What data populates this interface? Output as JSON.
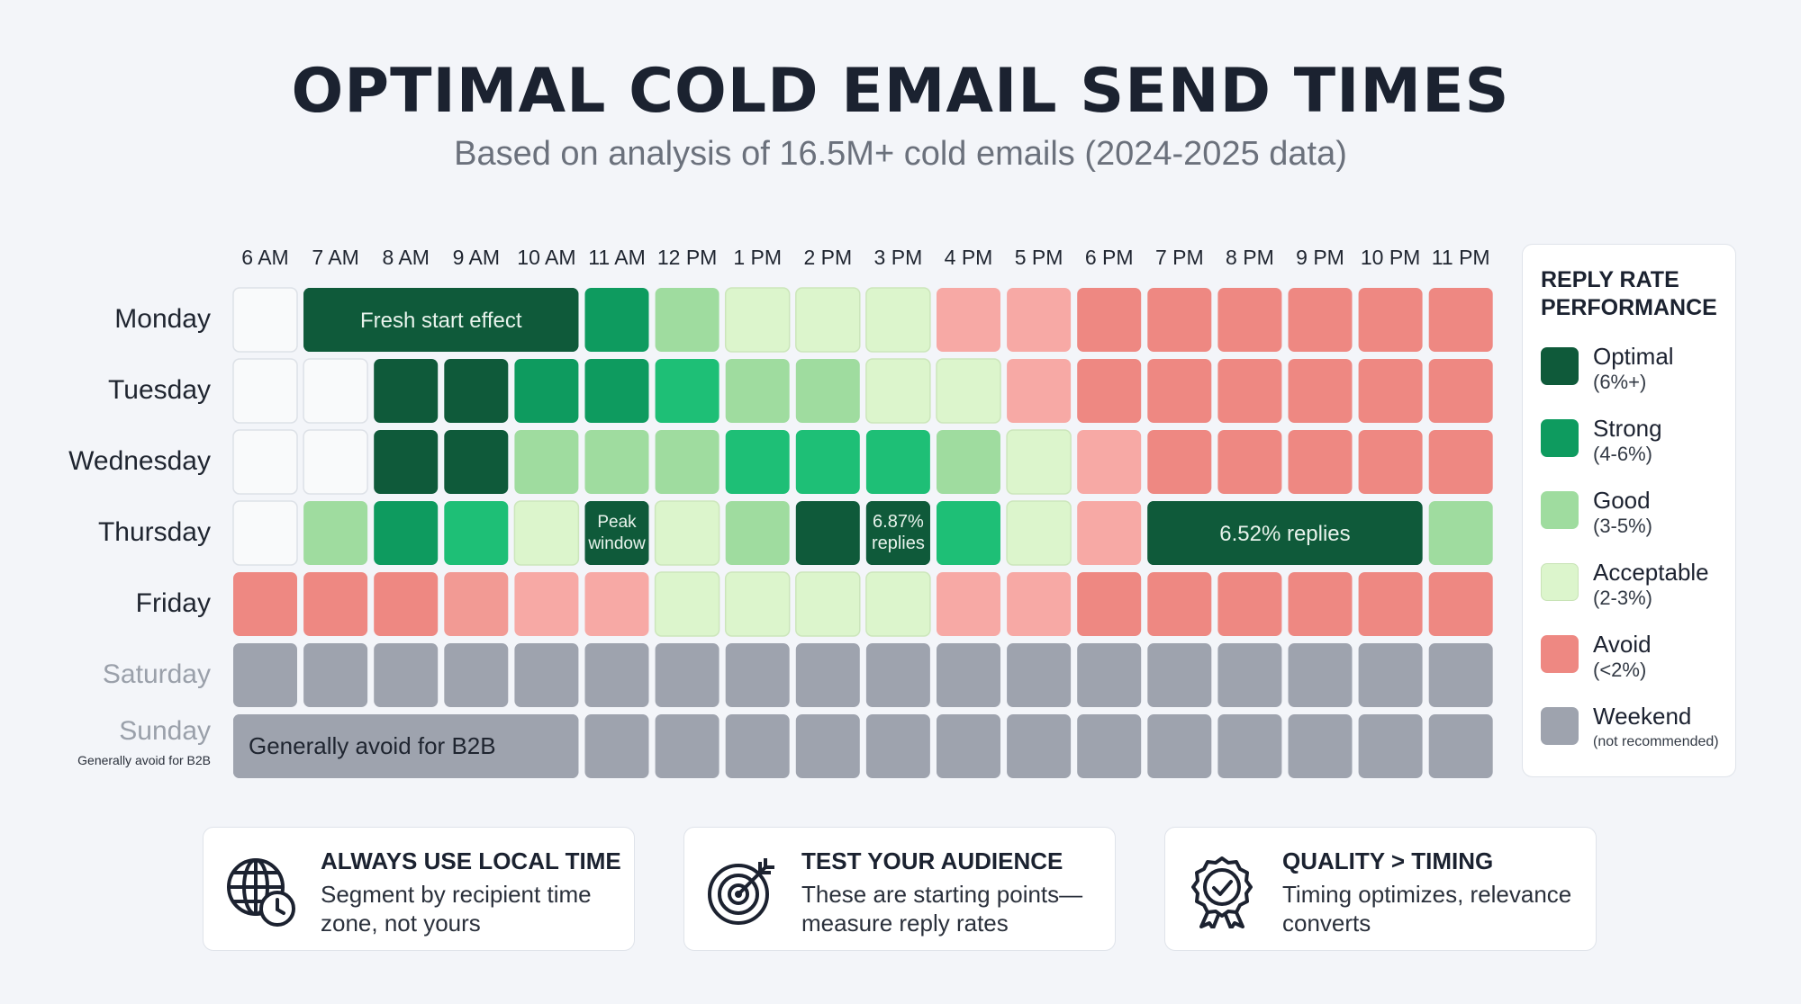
{
  "header": {
    "title": "OPTIMAL COLD EMAIL SEND TIMES",
    "subtitle": "Based on analysis of 16.5M+ cold emails (2024-2025 data)"
  },
  "chart_data": {
    "type": "heatmap",
    "x": [
      "6 AM",
      "7 AM",
      "8 AM",
      "9 AM",
      "10 AM",
      "11 AM",
      "12 PM",
      "1 PM",
      "2 PM",
      "3 PM",
      "4 PM",
      "5 PM",
      "6 PM",
      "7 PM",
      "8 PM",
      "9 PM",
      "10 PM",
      "11 PM"
    ],
    "y": [
      "Monday",
      "Tuesday",
      "Wednesday",
      "Thursday",
      "Friday",
      "Saturday",
      "Sunday"
    ],
    "row_notes": {
      "Sunday": "Generally avoid for B2B"
    },
    "categories": [
      "none",
      "optimal",
      "strong",
      "good",
      "acceptable",
      "avoid",
      "avoid-light",
      "avoid-mid",
      "weekend"
    ],
    "colors": {
      "none": "#f9fafb",
      "optimal": "#0f5a3a",
      "strong": "#0e9b5f",
      "strong-bright": "#1ebf76",
      "good": "#9fdc9f",
      "acceptable": "#dcf5cc",
      "avoid-light": "#f7a9a5",
      "avoid-mid": "#f29a94",
      "avoid": "#ee8882",
      "weekend": "#9ea3ae"
    },
    "cells": [
      [
        "none",
        "optimal",
        "optimal",
        "optimal",
        "optimal",
        "strong",
        "good",
        "acceptable",
        "acceptable",
        "acceptable",
        "avoid-light",
        "avoid-light",
        "avoid",
        "avoid",
        "avoid",
        "avoid",
        "avoid",
        "avoid"
      ],
      [
        "none",
        "none",
        "optimal",
        "optimal",
        "strong",
        "strong",
        "strong-bright",
        "good",
        "good",
        "acceptable",
        "acceptable",
        "avoid-light",
        "avoid",
        "avoid",
        "avoid",
        "avoid",
        "avoid",
        "avoid"
      ],
      [
        "none",
        "none",
        "optimal",
        "optimal",
        "good",
        "good",
        "good",
        "strong-bright",
        "strong-bright",
        "strong-bright",
        "good",
        "acceptable",
        "avoid-light",
        "avoid",
        "avoid",
        "avoid",
        "avoid",
        "avoid"
      ],
      [
        "none",
        "good",
        "strong",
        "strong-bright",
        "acceptable",
        "optimal",
        "acceptable",
        "good",
        "optimal",
        "optimal",
        "strong-bright",
        "acceptable",
        "avoid-light",
        "optimal",
        "optimal",
        "optimal",
        "optimal",
        "good"
      ],
      [
        "avoid",
        "avoid",
        "avoid",
        "avoid-mid",
        "avoid-light",
        "avoid-light",
        "acceptable",
        "acceptable",
        "acceptable",
        "acceptable",
        "avoid-light",
        "avoid-light",
        "avoid",
        "avoid",
        "avoid",
        "avoid",
        "avoid",
        "avoid"
      ],
      [
        "weekend",
        "weekend",
        "weekend",
        "weekend",
        "weekend",
        "weekend",
        "weekend",
        "weekend",
        "weekend",
        "weekend",
        "weekend",
        "weekend",
        "weekend",
        "weekend",
        "weekend",
        "weekend",
        "weekend",
        "weekend"
      ],
      [
        "weekend",
        "weekend",
        "weekend",
        "weekend",
        "weekend",
        "weekend",
        "weekend",
        "weekend",
        "weekend",
        "weekend",
        "weekend",
        "weekend",
        "weekend",
        "weekend",
        "weekend",
        "weekend",
        "weekend",
        "weekend"
      ]
    ],
    "annotations": [
      {
        "row": 0,
        "col_start": 1,
        "col_end": 4,
        "text": "Fresh start effect",
        "color": "optimal"
      },
      {
        "row": 3,
        "col_start": 5,
        "col_end": 5,
        "text": "Peak window",
        "color": "optimal"
      },
      {
        "row": 3,
        "col_start": 9,
        "col_end": 9,
        "text": "6.87% replies",
        "color": "optimal"
      },
      {
        "row": 3,
        "col_start": 13,
        "col_end": 16,
        "text": "6.52% replies",
        "color": "optimal"
      },
      {
        "row": 6,
        "col_start": 0,
        "col_end": 4,
        "text": "Generally avoid for B2B",
        "color": "weekend"
      }
    ]
  },
  "legend": {
    "title": "REPLY RATE PERFORMANCE",
    "items": [
      {
        "label": "Optimal",
        "sub": "(6%+)",
        "color": "#0f5a3a"
      },
      {
        "label": "Strong",
        "sub": "(4-6%)",
        "color": "#0e9b5f"
      },
      {
        "label": "Good",
        "sub": "(3-5%)",
        "color": "#9fdc9f"
      },
      {
        "label": "Acceptable",
        "sub": "(2-3%)",
        "color": "#dcf5cc"
      },
      {
        "label": "Avoid",
        "sub": "(<2%)",
        "color": "#ee8882"
      },
      {
        "label": "Weekend",
        "sub": "(not recommended)",
        "color": "#9ea3ae"
      }
    ]
  },
  "cards": [
    {
      "title": "ALWAYS USE LOCAL TIME",
      "text": "Segment by recipient time zone, not yours",
      "icon": "globe-clock-icon"
    },
    {
      "title": "TEST YOUR AUDIENCE",
      "text": "These are starting points—measure reply rates",
      "icon": "target-icon"
    },
    {
      "title": "QUALITY > TIMING",
      "text": "Timing optimizes, relevance converts",
      "icon": "award-badge-icon"
    }
  ]
}
